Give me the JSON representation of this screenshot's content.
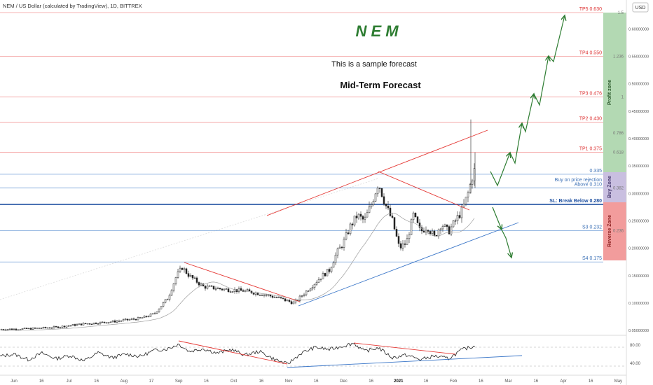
{
  "header": {
    "symbol_line": "NEM / US Dollar (calculated by TradingView), 1D, BITTREX",
    "currency": "USD"
  },
  "annotations": {
    "title": "N E M",
    "subtitle": "This is a sample forecast",
    "heading": "Mid-Term Forecast"
  },
  "zones": {
    "profit": "Profit zone",
    "buy": "Buy Zone",
    "reverse": "Reverse Zone"
  },
  "colors": {
    "red_line": "#f28b8b",
    "blue_line": "#5b8fd1",
    "trend_red": "#e53935",
    "trend_blue": "#3a76c8",
    "arrow_green": "#2e7d32",
    "candle": "#222222",
    "profit_zone": "#b3d9b3",
    "buy_zone": "#c9bfe0",
    "reverse_zone": "#f29c9c"
  },
  "chart_data": {
    "type": "candlestick",
    "ylim": [
      0.045,
      0.635
    ],
    "levels": [
      {
        "label": "TP5 0.630",
        "value": 0.63,
        "kind": "tp",
        "fib": "1.5"
      },
      {
        "label": "TP4 0.550",
        "value": 0.55,
        "kind": "tp",
        "fib": "1.236"
      },
      {
        "label": "TP3 0.476",
        "value": 0.476,
        "kind": "tp",
        "fib": "1"
      },
      {
        "label": "TP2 0.430",
        "value": 0.43,
        "kind": "tp",
        "fib": ""
      },
      {
        "label": "TP1 0.375",
        "value": 0.375,
        "kind": "tp",
        "fib": "0.618"
      },
      {
        "label": "0.335",
        "value": 0.335,
        "kind": "support",
        "fib": ""
      },
      {
        "label": "Buy on price rejection",
        "value": 0.318,
        "kind": "note",
        "fib": ""
      },
      {
        "label": "Above 0.310",
        "value": 0.31,
        "kind": "support",
        "fib": "0.382"
      },
      {
        "label": "SL: Break Below 0.280",
        "value": 0.28,
        "kind": "stop",
        "fib": ""
      },
      {
        "label": "S3 0.232",
        "value": 0.232,
        "kind": "support",
        "fib": "0.236"
      },
      {
        "label": "S4 0.175",
        "value": 0.175,
        "kind": "support",
        "fib": ""
      }
    ],
    "fib_extra": [
      {
        "label": "0.786",
        "value": 0.41
      }
    ],
    "price_ticks": [
      "0.60000000",
      "0.55000000",
      "0.50000000",
      "0.45000000",
      "0.40000000",
      "0.35000000",
      "0.30000000",
      "0.25000000",
      "0.20000000",
      "0.15000000",
      "0.10000000",
      "0.05000000"
    ],
    "price_tick_values": [
      0.6,
      0.55,
      0.5,
      0.45,
      0.4,
      0.35,
      0.3,
      0.25,
      0.2,
      0.15,
      0.1,
      0.05
    ],
    "time_labels": [
      "Jun",
      "16",
      "Jul",
      "16",
      "Aug",
      "17",
      "Sep",
      "16",
      "Oct",
      "16",
      "Nov",
      "16",
      "Dec",
      "16",
      "2021",
      "16",
      "Feb",
      "16",
      "Mar",
      "16",
      "Apr",
      "16",
      "May"
    ],
    "close_path": [
      [
        0,
        0.052
      ],
      [
        40,
        0.053
      ],
      [
        80,
        0.056
      ],
      [
        120,
        0.062
      ],
      [
        160,
        0.066
      ],
      [
        200,
        0.072
      ],
      [
        220,
        0.08
      ],
      [
        240,
        0.11
      ],
      [
        252,
        0.15
      ],
      [
        260,
        0.165
      ],
      [
        270,
        0.15
      ],
      [
        290,
        0.13
      ],
      [
        320,
        0.125
      ],
      [
        350,
        0.122
      ],
      [
        380,
        0.115
      ],
      [
        400,
        0.108
      ],
      [
        420,
        0.1
      ],
      [
        440,
        0.125
      ],
      [
        460,
        0.15
      ],
      [
        470,
        0.16
      ],
      [
        480,
        0.19
      ],
      [
        490,
        0.21
      ],
      [
        500,
        0.24
      ],
      [
        510,
        0.26
      ],
      [
        520,
        0.25
      ],
      [
        530,
        0.28
      ],
      [
        540,
        0.32
      ],
      [
        550,
        0.28
      ],
      [
        560,
        0.25
      ],
      [
        570,
        0.2
      ],
      [
        580,
        0.21
      ],
      [
        590,
        0.26
      ],
      [
        600,
        0.23
      ],
      [
        610,
        0.24
      ],
      [
        620,
        0.22
      ],
      [
        630,
        0.245
      ],
      [
        640,
        0.23
      ],
      [
        650,
        0.25
      ],
      [
        660,
        0.27
      ],
      [
        668,
        0.3
      ],
      [
        674,
        0.33
      ],
      [
        678,
        0.345
      ]
    ],
    "oscillator": {
      "ticks": [
        "80.00",
        "40.00"
      ],
      "tick_values": [
        80,
        40
      ],
      "ylim": [
        20,
        95
      ],
      "path": [
        [
          0,
          55
        ],
        [
          20,
          60
        ],
        [
          40,
          48
        ],
        [
          60,
          62
        ],
        [
          80,
          50
        ],
        [
          100,
          57
        ],
        [
          120,
          45
        ],
        [
          140,
          63
        ],
        [
          160,
          52
        ],
        [
          180,
          60
        ],
        [
          200,
          55
        ],
        [
          220,
          68
        ],
        [
          240,
          72
        ],
        [
          255,
          82
        ],
        [
          270,
          66
        ],
        [
          290,
          72
        ],
        [
          310,
          62
        ],
        [
          330,
          70
        ],
        [
          350,
          58
        ],
        [
          370,
          66
        ],
        [
          390,
          50
        ],
        [
          410,
          38
        ],
        [
          430,
          62
        ],
        [
          450,
          75
        ],
        [
          470,
          70
        ],
        [
          490,
          78
        ],
        [
          505,
          84
        ],
        [
          520,
          66
        ],
        [
          540,
          74
        ],
        [
          560,
          52
        ],
        [
          580,
          58
        ],
        [
          600,
          48
        ],
        [
          620,
          56
        ],
        [
          640,
          50
        ],
        [
          660,
          70
        ],
        [
          678,
          78
        ]
      ]
    }
  }
}
